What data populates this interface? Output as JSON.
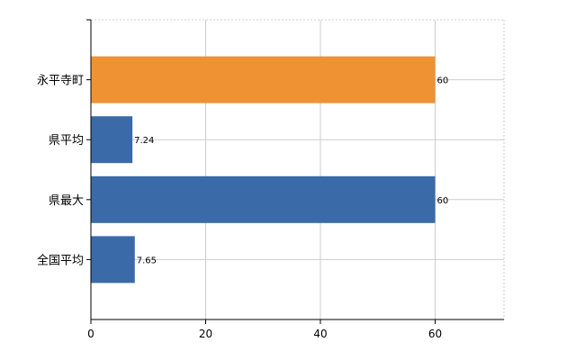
{
  "chart_data": {
    "type": "bar",
    "orientation": "horizontal",
    "categories": [
      "永平寺町",
      "県平均",
      "県最大",
      "全国平均"
    ],
    "values": [
      60,
      7.24,
      60,
      7.65
    ],
    "data_labels": [
      "60",
      "7.24",
      "60",
      "7.65"
    ],
    "colors": [
      "#ee9234",
      "#3a6aa8",
      "#3a6aa8",
      "#3a6aa8"
    ],
    "xlim": [
      0,
      72
    ],
    "xticks": [
      0,
      20,
      40,
      60
    ],
    "grid": true,
    "legend": "none"
  }
}
